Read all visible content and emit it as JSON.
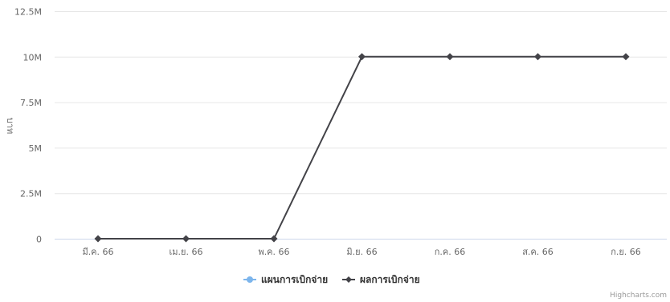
{
  "chart_data": {
    "type": "line",
    "title": "",
    "xlabel": "",
    "ylabel": "บาท",
    "categories": [
      "มี.ค. 66",
      "เม.ย. 66",
      "พ.ค. 66",
      "มิ.ย. 66",
      "ก.ค. 66",
      "ส.ค. 66",
      "ก.ย. 66"
    ],
    "y_ticks": [
      0,
      2500000,
      5000000,
      7500000,
      10000000,
      12500000
    ],
    "y_tick_labels": [
      "0",
      "2.5M",
      "5M",
      "7.5M",
      "10M",
      "12.5M"
    ],
    "ylim": [
      0,
      12500000
    ],
    "grid": true,
    "legend_position": "bottom-center",
    "series": [
      {
        "name": "แผนการเบิกจ่าย",
        "color": "#7cb5ec",
        "marker": "circle",
        "values": [
          null,
          null,
          null,
          null,
          null,
          null,
          null
        ]
      },
      {
        "name": "ผลการเบิกจ่าย",
        "color": "#434348",
        "marker": "diamond",
        "values": [
          0,
          0,
          0,
          10000000,
          10000000,
          10000000,
          10000000
        ]
      }
    ]
  },
  "credits": "Highcharts.com"
}
